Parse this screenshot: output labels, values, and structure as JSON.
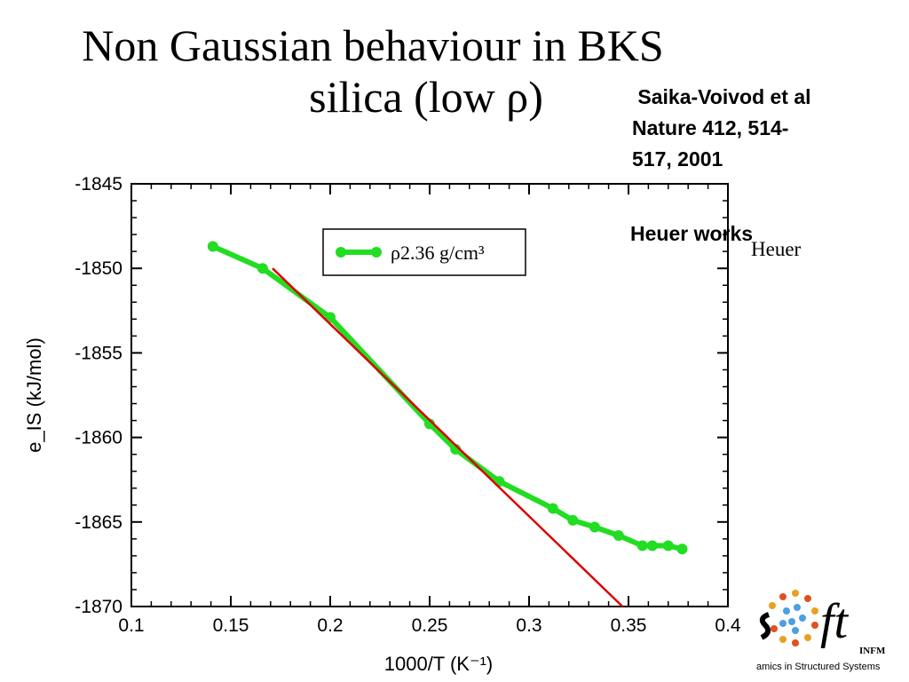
{
  "slide": {
    "title_line1": "Non Gaussian behaviour in BKS",
    "title_line2": "silica (low ρ)",
    "reference": {
      "line1": " Saika-Voivod et al",
      "line2": "Nature 412, 514-",
      "line3": "517, 2001"
    },
    "note_bold": "Heuer works",
    "note_serif": "Heuer"
  },
  "chart_data": {
    "type": "line",
    "x": [
      0.141,
      0.166,
      0.2,
      0.25,
      0.263,
      0.285,
      0.312,
      0.322,
      0.333,
      0.345,
      0.357,
      0.362,
      0.37,
      0.377
    ],
    "series": [
      {
        "name": "ρ2.36 g/cm³",
        "color": "#22dd22",
        "values": [
          -1848.7,
          -1850.0,
          -1852.9,
          -1859.2,
          -1860.7,
          -1862.6,
          -1864.2,
          -1864.9,
          -1865.3,
          -1865.8,
          -1866.4,
          -1866.4,
          -1866.4,
          -1866.6
        ]
      }
    ],
    "fit_line": {
      "color": "#dd0000",
      "x": [
        0.171,
        0.347
      ],
      "y": [
        -1850.0,
        -1870.0
      ]
    },
    "xlabel": "1000/T (K⁻¹)",
    "ylabel": "e_IS (kJ/mol)",
    "xlim": [
      0.1,
      0.4
    ],
    "ylim": [
      -1870,
      -1845
    ],
    "xticks": [
      "0.1",
      "0.15",
      "0.2",
      "0.25",
      "0.3",
      "0.35",
      "0.4"
    ],
    "yticks": [
      "-1845",
      "-1850",
      "-1855",
      "-1860",
      "-1865",
      "-1870"
    ],
    "legend_position": "top-center",
    "grid": false
  },
  "logo": {
    "icon": "soft-infm-logo",
    "text_main": "ft",
    "text_sub": "INFM",
    "caption": "amics in Structured Systems"
  }
}
